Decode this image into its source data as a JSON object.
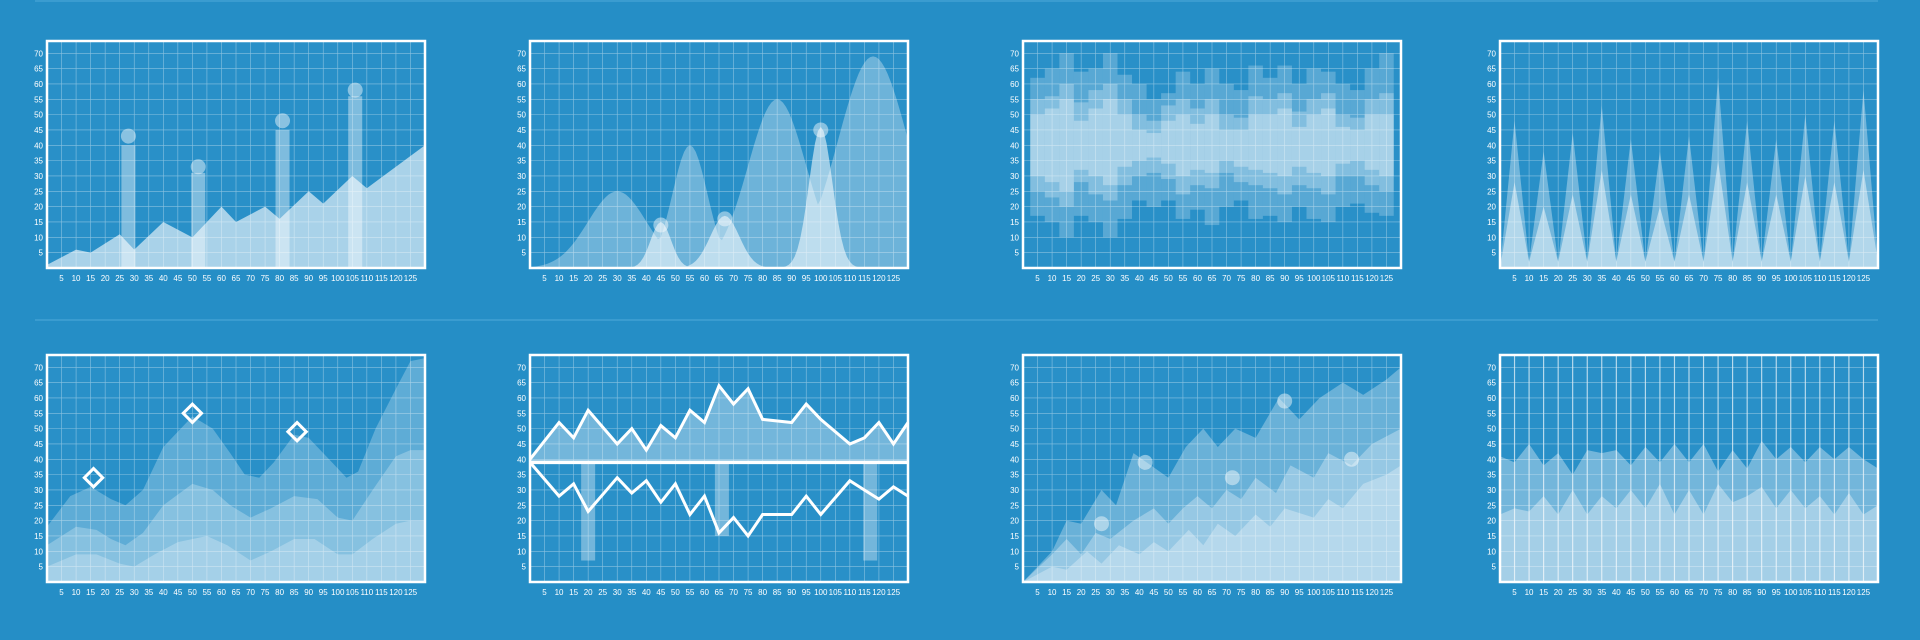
{
  "theme": {
    "background": "#258ec6",
    "grid": "#ffffff",
    "fill": "#ffffff"
  },
  "axes": {
    "x_ticks": [
      "5",
      "10",
      "15",
      "20",
      "25",
      "30",
      "35",
      "40",
      "45",
      "50",
      "55",
      "60",
      "65",
      "70",
      "75",
      "80",
      "85",
      "90",
      "95",
      "100",
      "105",
      "110",
      "115",
      "120",
      "125"
    ],
    "y_ticks": [
      "5",
      "10",
      "15",
      "20",
      "25",
      "30",
      "35",
      "40",
      "45",
      "50",
      "55",
      "60",
      "65",
      "70"
    ]
  },
  "chart_data": [
    {
      "type": "area",
      "xlim": [
        0,
        130
      ],
      "ylim": [
        0,
        74
      ],
      "grid": true,
      "series": [
        {
          "x": [
            0,
            10,
            15,
            25,
            30,
            40,
            50,
            60,
            65,
            75,
            80,
            90,
            95,
            105,
            110,
            130
          ],
          "y": [
            1,
            6,
            5,
            11,
            6,
            15,
            10,
            20,
            15,
            20,
            16,
            25,
            21,
            30,
            26,
            40
          ]
        }
      ],
      "bars": [
        {
          "x": 28,
          "value": 40,
          "marker": 43
        },
        {
          "x": 52,
          "value": 31,
          "marker": 33
        },
        {
          "x": 81,
          "value": 45,
          "marker": 48
        },
        {
          "x": 106,
          "value": 56,
          "marker": 58
        }
      ]
    },
    {
      "type": "area",
      "xlim": [
        0,
        130
      ],
      "ylim": [
        0,
        74
      ],
      "grid": true,
      "series": [
        {
          "name": "",
          "peaks": [
            [
              7,
              0.5,
              3
            ],
            [
              30,
              25,
              10
            ],
            [
              55,
              40,
              6
            ],
            [
              85,
              55,
              10
            ],
            [
              118,
              69,
              12
            ]
          ]
        },
        {
          "name": "",
          "peaks": [
            [
              45,
              15,
              3.5
            ],
            [
              67,
              17,
              5
            ],
            [
              100,
              46,
              4
            ]
          ]
        }
      ],
      "markers": [
        [
          45,
          14
        ],
        [
          67,
          16
        ],
        [
          100,
          45
        ]
      ]
    },
    {
      "type": "bar",
      "xlim": [
        0,
        130
      ],
      "ylim": [
        0,
        74
      ],
      "grid": true,
      "ranges": [
        {
          "low": [
            17,
            15,
            10,
            17,
            15,
            10,
            16,
            22,
            20,
            22,
            16,
            19,
            14,
            20,
            22,
            16,
            17,
            15,
            20,
            16,
            15,
            20,
            21,
            18,
            17
          ],
          "high": [
            62,
            65,
            70,
            64,
            65,
            70,
            63,
            60,
            55,
            57,
            64,
            60,
            65,
            60,
            58,
            66,
            62,
            66,
            60,
            65,
            64,
            60,
            58,
            65,
            70
          ]
        },
        {
          "low": [
            25,
            23,
            20,
            28,
            24,
            22,
            27,
            30,
            31,
            29,
            24,
            27,
            26,
            31,
            28,
            27,
            26,
            24,
            27,
            26,
            24,
            30,
            30,
            27,
            25
          ],
          "high": [
            55,
            56,
            60,
            54,
            58,
            60,
            55,
            50,
            48,
            53,
            55,
            52,
            55,
            50,
            49,
            56,
            55,
            57,
            51,
            55,
            57,
            50,
            49,
            55,
            57
          ]
        },
        {
          "low": [
            30,
            28,
            25,
            32,
            30,
            27,
            33,
            35,
            36,
            34,
            30,
            32,
            31,
            35,
            33,
            32,
            31,
            30,
            33,
            31,
            30,
            34,
            35,
            32,
            30
          ],
          "high": [
            50,
            52,
            55,
            48,
            52,
            55,
            50,
            45,
            44,
            48,
            50,
            47,
            50,
            45,
            45,
            50,
            50,
            52,
            46,
            50,
            52,
            46,
            45,
            50,
            50
          ]
        }
      ]
    },
    {
      "type": "area",
      "xlim": [
        0,
        130
      ],
      "ylim": [
        0,
        74
      ],
      "grid": true,
      "x": [
        0,
        5,
        10,
        15,
        20,
        25,
        30,
        35,
        40,
        45,
        50,
        55,
        60,
        65,
        70,
        75,
        80,
        85,
        90,
        95,
        100,
        105,
        110,
        115,
        120,
        125,
        130
      ],
      "series": [
        {
          "y": [
            0,
            48,
            2,
            38,
            2,
            44,
            2,
            53,
            2,
            42,
            2,
            38,
            2,
            43,
            2,
            62,
            2,
            48,
            2,
            42,
            2,
            50,
            2,
            48,
            2,
            58,
            2
          ]
        },
        {
          "y": [
            0,
            28,
            2,
            20,
            2,
            24,
            2,
            32,
            2,
            24,
            2,
            20,
            2,
            24,
            2,
            35,
            2,
            28,
            2,
            24,
            2,
            30,
            2,
            28,
            2,
            32,
            2
          ]
        }
      ]
    },
    {
      "type": "area",
      "xlim": [
        0,
        130
      ],
      "ylim": [
        0,
        74
      ],
      "grid": true,
      "series": [
        {
          "points": [
            [
              0,
              18
            ],
            [
              8,
              28
            ],
            [
              15,
              31
            ],
            [
              22,
              27
            ],
            [
              27,
              25
            ],
            [
              33,
              30
            ],
            [
              40,
              44
            ],
            [
              50,
              54
            ],
            [
              57,
              50
            ],
            [
              63,
              42
            ],
            [
              68,
              35
            ],
            [
              73,
              34
            ],
            [
              78,
              39
            ],
            [
              85,
              48
            ],
            [
              90,
              47
            ],
            [
              97,
              40
            ],
            [
              103,
              34
            ],
            [
              107,
              36
            ],
            [
              113,
              50
            ],
            [
              120,
              63
            ],
            [
              125,
              72
            ],
            [
              130,
              73
            ]
          ]
        },
        {
          "points": [
            [
              0,
              12
            ],
            [
              10,
              18
            ],
            [
              17,
              17
            ],
            [
              22,
              14
            ],
            [
              27,
              12
            ],
            [
              33,
              16
            ],
            [
              40,
              25
            ],
            [
              50,
              32
            ],
            [
              57,
              30
            ],
            [
              63,
              25
            ],
            [
              70,
              21
            ],
            [
              77,
              24
            ],
            [
              85,
              28
            ],
            [
              93,
              27
            ],
            [
              100,
              21
            ],
            [
              105,
              20
            ],
            [
              112,
              30
            ],
            [
              120,
              41
            ],
            [
              125,
              43
            ],
            [
              130,
              43
            ]
          ]
        },
        {
          "points": [
            [
              0,
              5
            ],
            [
              10,
              9
            ],
            [
              17,
              9
            ],
            [
              25,
              6
            ],
            [
              30,
              5
            ],
            [
              37,
              9
            ],
            [
              45,
              13
            ],
            [
              55,
              15
            ],
            [
              62,
              12
            ],
            [
              70,
              7
            ],
            [
              77,
              10
            ],
            [
              85,
              14
            ],
            [
              92,
              14
            ],
            [
              100,
              9
            ],
            [
              105,
              9
            ],
            [
              112,
              14
            ],
            [
              120,
              19
            ],
            [
              125,
              20
            ],
            [
              130,
              20
            ]
          ]
        }
      ],
      "markers": [
        [
          16,
          34
        ],
        [
          50,
          55
        ],
        [
          86,
          49
        ]
      ]
    },
    {
      "type": "line",
      "xlim": [
        0,
        130
      ],
      "ylim": [
        0,
        74
      ],
      "grid": true,
      "baseline": 39,
      "x": [
        0,
        10,
        15,
        20,
        30,
        35,
        40,
        45,
        50,
        55,
        60,
        65,
        70,
        75,
        80,
        90,
        95,
        100,
        110,
        115,
        120,
        125,
        130
      ],
      "series": [
        {
          "y": [
            40,
            52,
            47,
            56,
            45,
            50,
            43,
            51,
            47,
            56,
            52,
            64,
            58,
            63,
            53,
            52,
            58,
            53,
            45,
            47,
            52,
            45,
            52
          ]
        },
        {
          "y": [
            39,
            28,
            32,
            23,
            34,
            29,
            33,
            26,
            32,
            22,
            28,
            16,
            21,
            15,
            22,
            22,
            28,
            22,
            33,
            30,
            27,
            31,
            28
          ]
        }
      ],
      "bars": [
        {
          "x": 20,
          "from": 39,
          "to": 7
        },
        {
          "x": 66,
          "from": 39,
          "to": 15
        },
        {
          "x": 117,
          "from": 39,
          "to": 7
        }
      ]
    },
    {
      "type": "area",
      "xlim": [
        0,
        130
      ],
      "ylim": [
        0,
        74
      ],
      "grid": true,
      "series": [
        {
          "points": [
            [
              0,
              0
            ],
            [
              10,
              10
            ],
            [
              15,
              20
            ],
            [
              20,
              19
            ],
            [
              27,
              30
            ],
            [
              32,
              25
            ],
            [
              38,
              42
            ],
            [
              44,
              38
            ],
            [
              50,
              34
            ],
            [
              56,
              44
            ],
            [
              62,
              50
            ],
            [
              67,
              44
            ],
            [
              73,
              50
            ],
            [
              80,
              47
            ],
            [
              88,
              60
            ],
            [
              95,
              53
            ],
            [
              102,
              60
            ],
            [
              110,
              65
            ],
            [
              117,
              61
            ],
            [
              125,
              66
            ],
            [
              130,
              70
            ]
          ]
        },
        {
          "points": [
            [
              0,
              0
            ],
            [
              10,
              9
            ],
            [
              15,
              14
            ],
            [
              20,
              9
            ],
            [
              25,
              16
            ],
            [
              30,
              14
            ],
            [
              38,
              20
            ],
            [
              45,
              24
            ],
            [
              50,
              19
            ],
            [
              55,
              24
            ],
            [
              60,
              28
            ],
            [
              65,
              24
            ],
            [
              70,
              30
            ],
            [
              75,
              27
            ],
            [
              80,
              34
            ],
            [
              87,
              29
            ],
            [
              92,
              38
            ],
            [
              100,
              34
            ],
            [
              105,
              42
            ],
            [
              113,
              38
            ],
            [
              120,
              45
            ],
            [
              130,
              50
            ]
          ]
        },
        {
          "points": [
            [
              0,
              0
            ],
            [
              10,
              5
            ],
            [
              15,
              4
            ],
            [
              22,
              10
            ],
            [
              27,
              6
            ],
            [
              33,
              12
            ],
            [
              40,
              9
            ],
            [
              45,
              13
            ],
            [
              50,
              10
            ],
            [
              57,
              17
            ],
            [
              62,
              12
            ],
            [
              67,
              19
            ],
            [
              73,
              15
            ],
            [
              80,
              22
            ],
            [
              85,
              18
            ],
            [
              90,
              24
            ],
            [
              100,
              21
            ],
            [
              105,
              27
            ],
            [
              110,
              24
            ],
            [
              117,
              32
            ],
            [
              125,
              35
            ],
            [
              130,
              38
            ]
          ]
        }
      ],
      "markers": [
        [
          27,
          19
        ],
        [
          42,
          39
        ],
        [
          72,
          34
        ],
        [
          90,
          59
        ],
        [
          113,
          40
        ]
      ]
    },
    {
      "type": "area",
      "xlim": [
        0,
        130
      ],
      "ylim": [
        0,
        74
      ],
      "grid": true,
      "x": [
        0,
        5,
        10,
        15,
        20,
        25,
        30,
        35,
        40,
        45,
        50,
        55,
        60,
        65,
        70,
        75,
        80,
        85,
        90,
        95,
        100,
        105,
        110,
        115,
        120,
        125,
        130
      ],
      "series": [
        {
          "y": [
            41,
            39,
            45,
            38,
            42,
            35,
            43,
            42,
            43,
            38,
            44,
            39,
            45,
            39,
            45,
            36,
            43,
            37,
            46,
            40,
            44,
            39,
            44,
            40,
            44,
            40,
            37
          ]
        },
        {
          "y": [
            22,
            24,
            23,
            28,
            22,
            30,
            22,
            28,
            24,
            30,
            24,
            32,
            22,
            30,
            22,
            32,
            26,
            28,
            31,
            24,
            30,
            24,
            28,
            22,
            29,
            22,
            25
          ]
        }
      ]
    }
  ]
}
